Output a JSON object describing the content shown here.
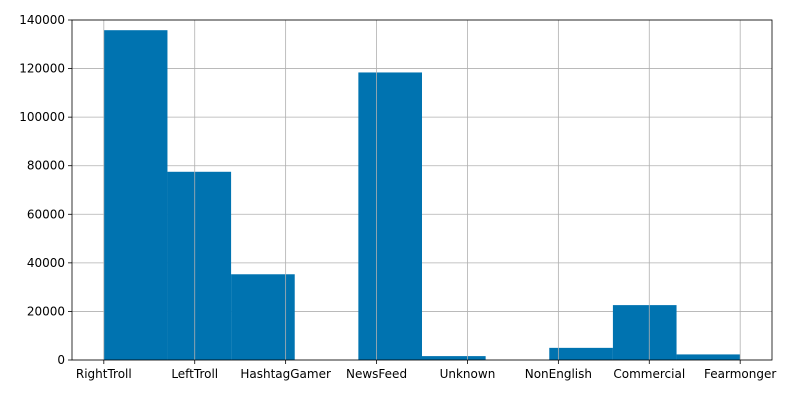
{
  "chart_data": {
    "type": "bar",
    "title": "",
    "xlabel": "",
    "ylabel": "",
    "categories": [
      "RightTroll",
      "LeftTroll",
      "HashtagGamer",
      "NewsFeed",
      "Unknown",
      "NonEnglish",
      "Commercial",
      "Fearmonger"
    ],
    "bins": [
      {
        "start": 0.0,
        "end": 0.7,
        "value": 135800
      },
      {
        "start": 0.7,
        "end": 1.4,
        "value": 77500
      },
      {
        "start": 1.4,
        "end": 2.1,
        "value": 35300
      },
      {
        "start": 2.1,
        "end": 2.8,
        "value": 0
      },
      {
        "start": 2.8,
        "end": 3.5,
        "value": 118400
      },
      {
        "start": 3.5,
        "end": 4.2,
        "value": 1600
      },
      {
        "start": 4.2,
        "end": 4.9,
        "value": 0
      },
      {
        "start": 4.9,
        "end": 5.6,
        "value": 5000
      },
      {
        "start": 5.6,
        "end": 6.3,
        "value": 22600
      },
      {
        "start": 6.3,
        "end": 7.0,
        "value": 2300
      }
    ],
    "ylim": [
      0,
      140000
    ],
    "yticks": [
      "0",
      "20000",
      "40000",
      "60000",
      "80000",
      "100000",
      "120000",
      "140000"
    ],
    "grid": true,
    "legend": "none",
    "bar_color": "#0073b0",
    "grid_color": "#b0b0b0"
  }
}
